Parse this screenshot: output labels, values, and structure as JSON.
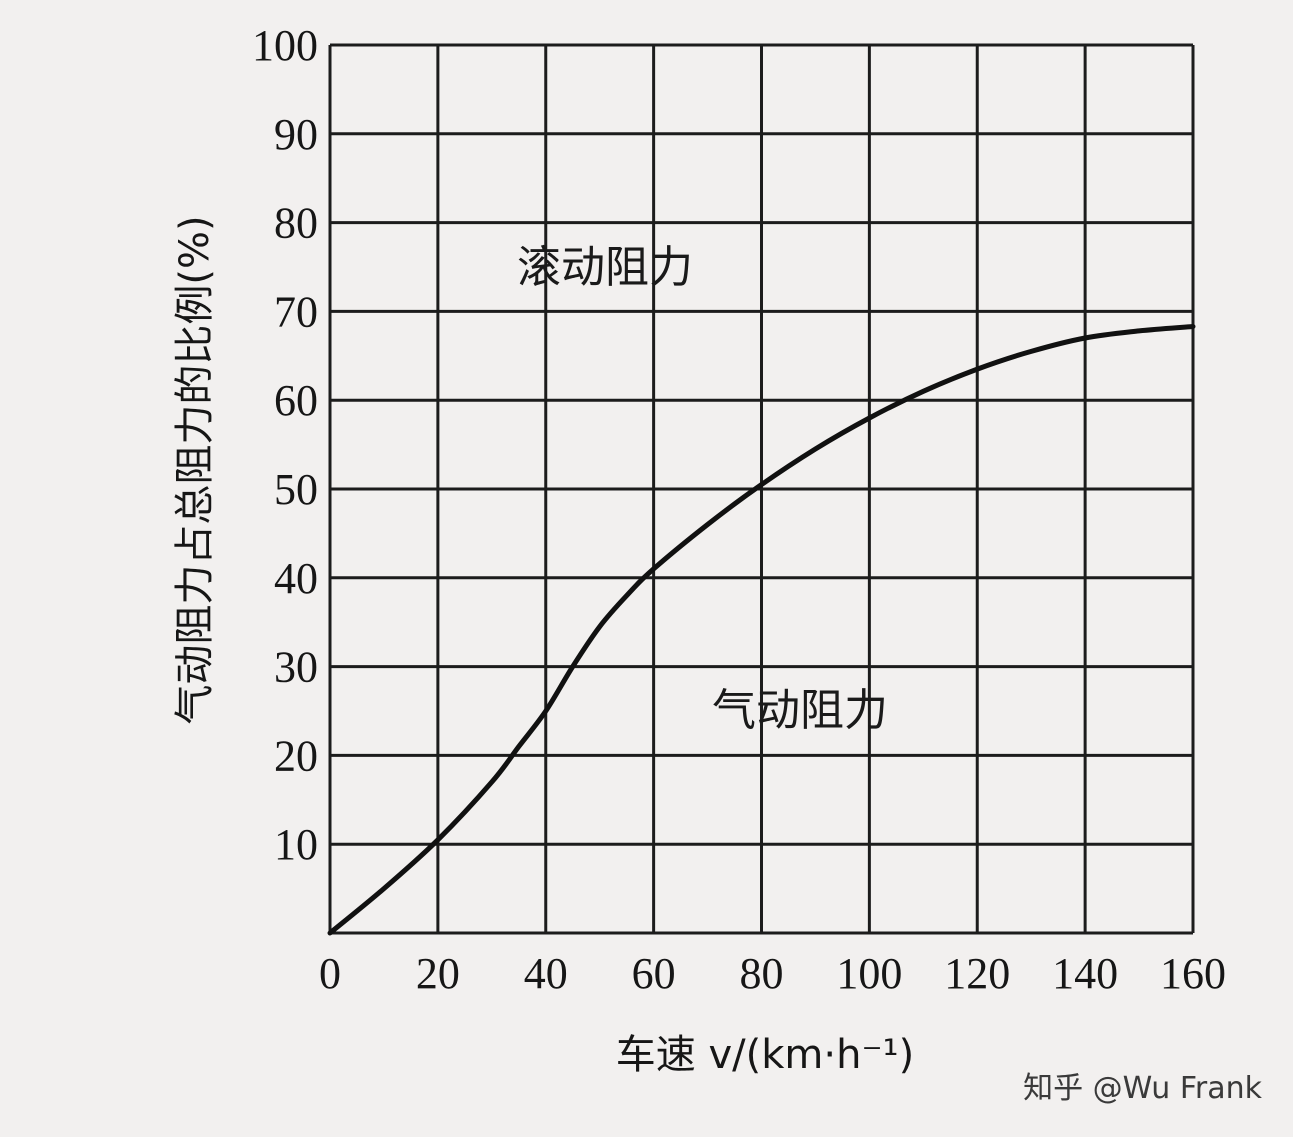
{
  "chart_data": {
    "type": "line",
    "xlabel": "车速 v/(km·h⁻¹)",
    "ylabel": "气动阻力占总阻力的比例(%)",
    "x_ticks": [
      "0",
      "20",
      "40",
      "60",
      "80",
      "100",
      "120",
      "140",
      "160"
    ],
    "y_ticks": [
      "10",
      "20",
      "30",
      "40",
      "50",
      "60",
      "70",
      "80",
      "90",
      "100"
    ],
    "xlim": [
      0,
      160
    ],
    "ylim": [
      0,
      100
    ],
    "grid": true,
    "annotations": {
      "upper_region": "滚动阻力",
      "lower_region": "气动阻力"
    },
    "series": [
      {
        "x": [
          0,
          10,
          20,
          30,
          35,
          40,
          45,
          50,
          55,
          60,
          70,
          80,
          90,
          100,
          110,
          120,
          130,
          140,
          150,
          160
        ],
        "y": [
          0,
          5,
          10.5,
          17,
          21,
          25,
          30,
          34.5,
          38,
          41,
          46,
          50.5,
          54.5,
          58,
          61,
          63.5,
          65.5,
          67,
          67.8,
          68.3
        ]
      }
    ],
    "colors": {
      "line": "#111111",
      "grid": "#1c1c1c",
      "background": "#f2f0ef"
    }
  },
  "watermark": "知乎 @Wu Frank"
}
